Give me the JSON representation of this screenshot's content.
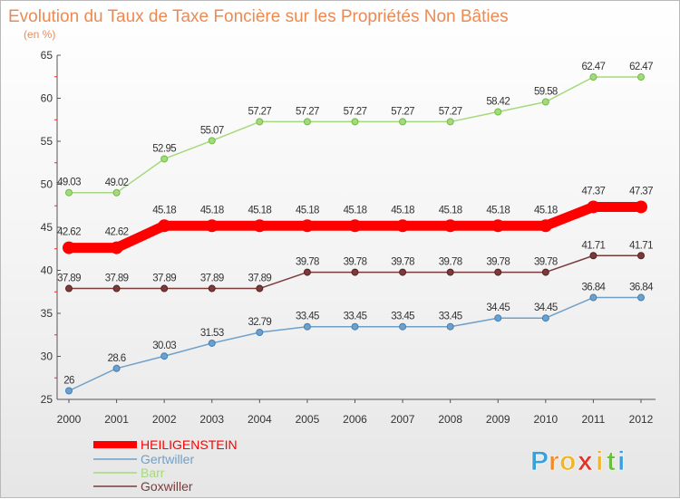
{
  "chart_data": {
    "type": "line",
    "title": "Evolution du Taux de Taxe Foncière sur les Propriétés Non Bâties",
    "subtitle": "(en %)",
    "xlabel": "",
    "ylabel": "",
    "ylim": [
      25,
      65
    ],
    "yticks": [
      25,
      30,
      35,
      40,
      45,
      50,
      55,
      60,
      65
    ],
    "grid": false,
    "legend_position": "bottom-left",
    "categories": [
      "2000",
      "2001",
      "2002",
      "2003",
      "2004",
      "2005",
      "2006",
      "2007",
      "2008",
      "2009",
      "2010",
      "2011",
      "2012"
    ],
    "series": [
      {
        "name": "HEILIGENSTEIN",
        "color": "#ff0000",
        "values": [
          42.62,
          42.62,
          45.18,
          45.18,
          45.18,
          45.18,
          45.18,
          45.18,
          45.18,
          45.18,
          45.18,
          47.37,
          47.37
        ],
        "labels": [
          "42.62",
          "42.62",
          "45.18",
          "45.18",
          "45.18",
          "45.18",
          "45.18",
          "45.18",
          "45.18",
          "45.18",
          "45.18",
          "47.37",
          "47.37"
        ]
      },
      {
        "name": "Gertwiller",
        "color": "#6fa0c9",
        "values": [
          26,
          28.6,
          30.03,
          31.53,
          32.79,
          33.45,
          33.45,
          33.45,
          33.45,
          34.45,
          34.45,
          36.84,
          36.84
        ],
        "labels": [
          "26",
          "28.6",
          "30.03",
          "31.53",
          "32.79",
          "33.45",
          "33.45",
          "33.45",
          "33.45",
          "34.45",
          "34.45",
          "36.84",
          "36.84"
        ]
      },
      {
        "name": "Barr",
        "color": "#a6d97d",
        "values": [
          49.03,
          49.02,
          52.95,
          55.07,
          57.27,
          57.27,
          57.27,
          57.27,
          57.27,
          58.42,
          59.58,
          62.47,
          62.47
        ],
        "labels": [
          "49.03",
          "49.02",
          "52.95",
          "55.07",
          "57.27",
          "57.27",
          "57.27",
          "57.27",
          "57.27",
          "58.42",
          "59.58",
          "62.47",
          "62.47"
        ]
      },
      {
        "name": "Goxwiller",
        "color": "#7a3b3b",
        "values": [
          37.89,
          37.89,
          37.89,
          37.89,
          37.89,
          39.78,
          39.78,
          39.78,
          39.78,
          39.78,
          39.78,
          41.71,
          41.71
        ],
        "labels": [
          "37.89",
          "37.89",
          "37.89",
          "37.89",
          "37.89",
          "39.78",
          "39.78",
          "39.78",
          "39.78",
          "39.78",
          "39.78",
          "41.71",
          "41.71"
        ]
      }
    ]
  },
  "logo": {
    "letters": [
      "P",
      "r",
      "o",
      "x",
      "i",
      "t",
      "i"
    ],
    "colors": [
      "#3aa0dc",
      "#f08a2a",
      "#f0b52a",
      "#e0342a",
      "#f0b52a",
      "#6cbf3e",
      "#3aa0dc"
    ]
  }
}
